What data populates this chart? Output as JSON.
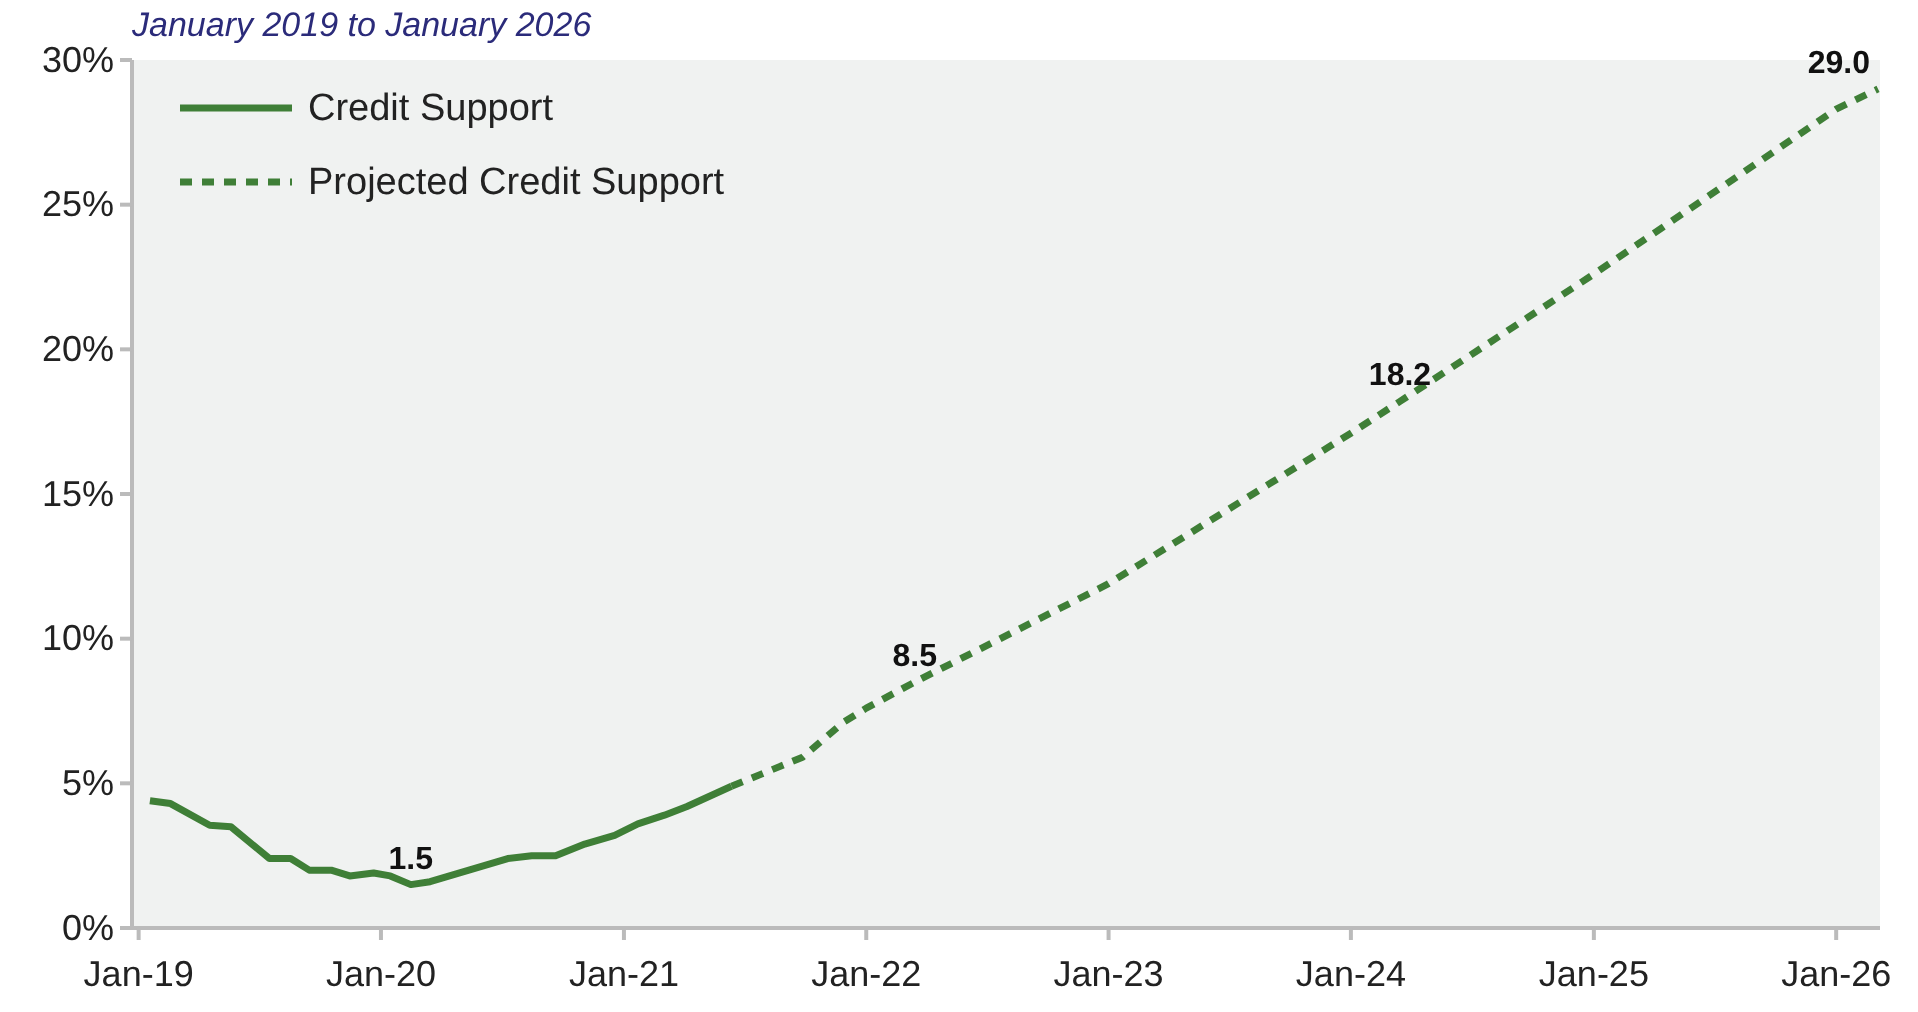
{
  "chart_data": {
    "type": "line",
    "subtitle": "January 2019 to January 2026",
    "xlim": [
      "2018-12-22",
      "2026-03-08"
    ],
    "xticks": [
      {
        "value": "2019-01-01",
        "label": "Jan-19"
      },
      {
        "value": "2020-01-01",
        "label": "Jan-20"
      },
      {
        "value": "2021-01-01",
        "label": "Jan-21"
      },
      {
        "value": "2022-01-01",
        "label": "Jan-22"
      },
      {
        "value": "2023-01-01",
        "label": "Jan-23"
      },
      {
        "value": "2024-01-01",
        "label": "Jan-24"
      },
      {
        "value": "2025-01-01",
        "label": "Jan-25"
      },
      {
        "value": "2026-01-01",
        "label": "Jan-26"
      }
    ],
    "ylim": [
      0,
      30
    ],
    "yticks": [
      {
        "value": 0,
        "label": "0%"
      },
      {
        "value": 5,
        "label": "5%"
      },
      {
        "value": 10,
        "label": "10%"
      },
      {
        "value": 15,
        "label": "15%"
      },
      {
        "value": 20,
        "label": "20%"
      },
      {
        "value": 25,
        "label": "25%"
      },
      {
        "value": 30,
        "label": "30%"
      }
    ],
    "grid": false,
    "legend": "top left",
    "series": [
      {
        "name": "Credit Support",
        "color": "#3f7f37",
        "line_style": "solid",
        "x": [
          "2019-01-18",
          "2019-02-18",
          "2019-04-18",
          "2019-05-20",
          "2019-07-17",
          "2019-08-18",
          "2019-09-15",
          "2019-10-18",
          "2019-11-15",
          "2019-12-21",
          "2020-01-15",
          "2020-02-15",
          "2020-03-15",
          "2020-07-10",
          "2020-08-15",
          "2020-09-20",
          "2020-11-03",
          "2020-12-18",
          "2021-01-22",
          "2021-03-03",
          "2021-04-06",
          "2021-06-12"
        ],
        "values": [
          4.4,
          4.3,
          3.55,
          3.5,
          2.4,
          2.4,
          2.0,
          2.0,
          1.8,
          1.9,
          1.8,
          1.5,
          1.6,
          2.4,
          2.5,
          2.5,
          2.9,
          3.2,
          3.6,
          3.9,
          4.2,
          4.9
        ]
      },
      {
        "name": "Projected Credit Support",
        "color": "#3f7f37",
        "line_style": "dashed",
        "x": [
          "2021-06-12",
          "2021-09-27",
          "2021-11-27",
          "2022-01-01",
          "2022-03-15",
          "2023-01-01",
          "2024-01-01",
          "2024-03-15",
          "2025-01-01",
          "2026-01-01",
          "2026-03-05"
        ],
        "values": [
          4.9,
          5.9,
          7.1,
          7.6,
          8.5,
          11.9,
          17.1,
          18.2,
          22.6,
          28.3,
          29.0
        ]
      }
    ],
    "annotations": [
      {
        "text": "1.5",
        "x": "2020-02-15",
        "y": 1.5
      },
      {
        "text": "8.5",
        "x": "2022-03-15",
        "y": 8.5
      },
      {
        "text": "18.2",
        "x": "2024-03-15",
        "y": 18.2
      },
      {
        "text": "29.0",
        "x": "2026-03-05",
        "y": 29.0
      }
    ]
  }
}
